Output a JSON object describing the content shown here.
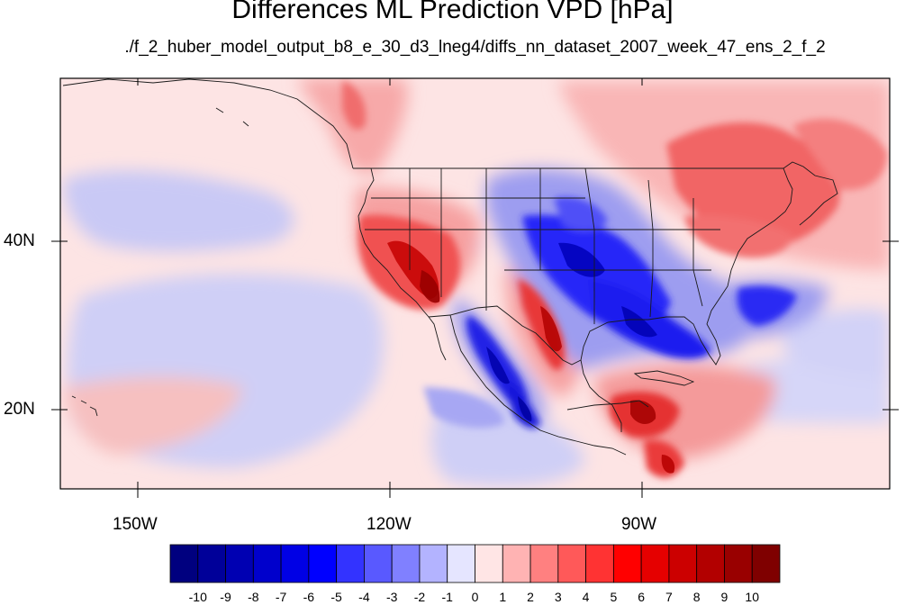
{
  "title": "Differences ML Prediction VPD [hPa]",
  "subtitle": "./f_2_huber_model_output_b8_e_30_d3_lneg4/diffs_nn_dataset_2007_week_47_ens_2_f_2",
  "map": {
    "lon_range": [
      -160,
      -62
    ],
    "lat_range": [
      11,
      58
    ],
    "lon_labels": [
      "150W",
      "120W",
      "90W"
    ],
    "lat_labels": [
      "40N",
      "20N"
    ],
    "field_features": [
      {
        "region": "California / Nevada / Arizona",
        "lon": -118,
        "lat": 36,
        "value": 9
      },
      {
        "region": "Great Basin",
        "lon": -113,
        "lat": 38,
        "value": 5
      },
      {
        "region": "Central Mexican plateau",
        "lon": -104,
        "lat": 28,
        "value": 9
      },
      {
        "region": "Central & Southern Plains / Gulf Coast",
        "lon": -95,
        "lat": 35,
        "value": -6
      },
      {
        "region": "Gulf of Mexico",
        "lon": -93,
        "lat": 28,
        "value": -6
      },
      {
        "region": "Off Georgia coast",
        "lon": -76,
        "lat": 31,
        "value": -5
      },
      {
        "region": "Western Mexico / Sierra Madre Occidental",
        "lon": -107,
        "lat": 24,
        "value": -6
      },
      {
        "region": "Caribbean south of Cuba",
        "lon": -90,
        "lat": 19,
        "value": 8
      },
      {
        "region": "Central America",
        "lon": -87,
        "lat": 14,
        "value": 8
      },
      {
        "region": "Northeast US / New England",
        "lon": -72,
        "lat": 44,
        "value": 6
      },
      {
        "region": "Canada east of Hudson Bay",
        "lon": -75,
        "lat": 50,
        "value": 5
      },
      {
        "region": "Canadian Prairies",
        "lon": -90,
        "lat": 49,
        "value": 3
      },
      {
        "region": "British Columbia coast",
        "lon": -125,
        "lat": 54,
        "value": 4
      },
      {
        "region": "Eastern Pacific off Mexico",
        "lon": -124,
        "lat": 20,
        "value": -3
      },
      {
        "region": "Pacific near Hawaii",
        "lon": -145,
        "lat": 25,
        "value": -2
      },
      {
        "region": "Pacific subtropical band",
        "lon": -135,
        "lat": 30,
        "value": -1
      }
    ]
  },
  "colorbar": {
    "labels": [
      "-10",
      "-9",
      "-8",
      "-7",
      "-6",
      "-5",
      "-4",
      "-3",
      "-2",
      "-1",
      "0",
      "1",
      "2",
      "3",
      "4",
      "5",
      "6",
      "7",
      "8",
      "9",
      "10"
    ],
    "colors": [
      "#00007f",
      "#000099",
      "#0000b2",
      "#0000cc",
      "#0000e5",
      "#0000ff",
      "#3333ff",
      "#5959ff",
      "#8080ff",
      "#b3b3ff",
      "#e5e5ff",
      "#ffe5e5",
      "#ffb3b3",
      "#ff8080",
      "#ff5959",
      "#ff3333",
      "#ff0000",
      "#e50000",
      "#cc0000",
      "#b20000",
      "#990000",
      "#7f0000"
    ]
  }
}
